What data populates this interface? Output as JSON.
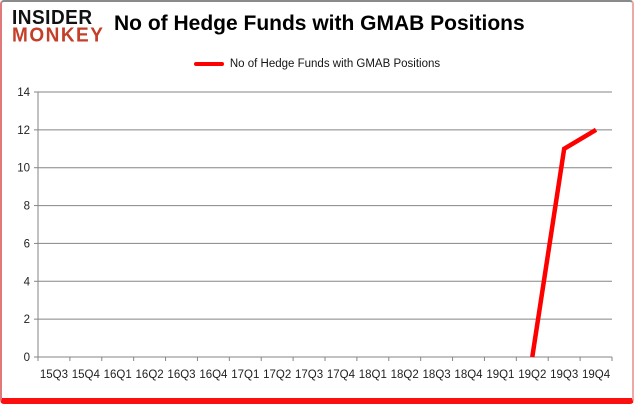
{
  "logo": {
    "line1": "INSIDER",
    "line2": "MONKEY"
  },
  "header": {
    "title": "No of Hedge Funds with GMAB Positions"
  },
  "legend": {
    "label": "No of Hedge Funds with GMAB Positions"
  },
  "colors": {
    "series": "#fe0000",
    "grid": "#858585",
    "axis_text": "#1f1f1f",
    "logo_black": "#111111",
    "logo_red": "#c43e28",
    "frame_bottom": "#fb0f0f"
  },
  "chart_data": {
    "type": "line",
    "title": "No of Hedge Funds with GMAB Positions",
    "categories": [
      "15Q3",
      "15Q4",
      "16Q1",
      "16Q2",
      "16Q3",
      "16Q4",
      "17Q1",
      "17Q2",
      "17Q3",
      "17Q4",
      "18Q1",
      "18Q2",
      "18Q3",
      "18Q4",
      "19Q1",
      "19Q2",
      "19Q3",
      "19Q4"
    ],
    "series": [
      {
        "name": "No of Hedge Funds with GMAB Positions",
        "color": "#fe0000",
        "values": [
          null,
          null,
          null,
          null,
          null,
          null,
          null,
          null,
          null,
          null,
          null,
          null,
          null,
          null,
          null,
          0,
          11,
          12
        ]
      }
    ],
    "xlabel": "",
    "ylabel": "",
    "ylim": [
      0,
      14
    ],
    "ytick_step": 2,
    "grid": true,
    "legend_position": "top-center"
  }
}
